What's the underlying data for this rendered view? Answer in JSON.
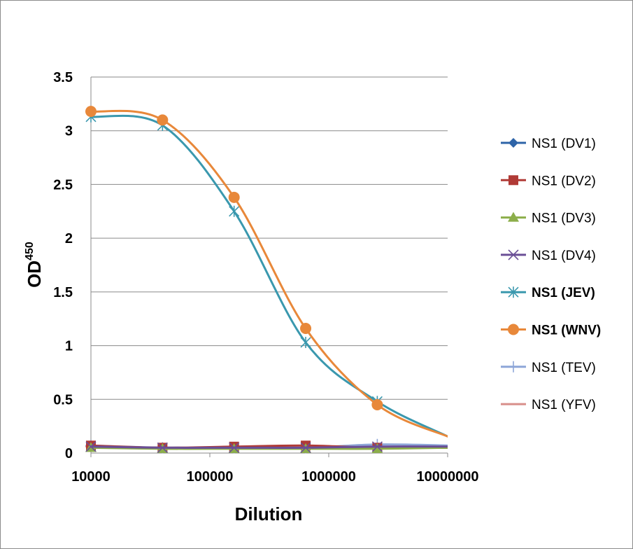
{
  "chart_data": {
    "type": "line",
    "xlabel": "Dilution",
    "ylabel": "OD",
    "ylabel_sup": "450",
    "x_scale": "log",
    "xlim": [
      10000,
      10000000
    ],
    "ylim": [
      0,
      3.5
    ],
    "x_ticks": [
      "10000",
      "100000",
      "1000000",
      "10000000"
    ],
    "y_ticks": [
      "0",
      "0.5",
      "1",
      "1.5",
      "2",
      "2.5",
      "3",
      "3.5"
    ],
    "grid": "horizontal",
    "legend_position": "right",
    "x": [
      10000,
      40000,
      160000,
      640000,
      2560000,
      10240000
    ],
    "series": [
      {
        "name": "NS1 (DV1)",
        "color": "#2e64a8",
        "marker": "diamond",
        "bold": false,
        "values": [
          0.06,
          0.05,
          0.05,
          0.05,
          0.05,
          0.05
        ]
      },
      {
        "name": "NS1 (DV2)",
        "color": "#b03a36",
        "marker": "square",
        "bold": false,
        "values": [
          0.07,
          0.05,
          0.06,
          0.07,
          0.05,
          0.05
        ]
      },
      {
        "name": "NS1 (DV3)",
        "color": "#8cae4a",
        "marker": "triangle",
        "bold": false,
        "values": [
          0.05,
          0.04,
          0.04,
          0.04,
          0.04,
          0.05
        ]
      },
      {
        "name": "NS1 (DV4)",
        "color": "#6a4e96",
        "marker": "x",
        "bold": false,
        "values": [
          0.06,
          0.05,
          0.05,
          0.05,
          0.06,
          0.06
        ]
      },
      {
        "name": "NS1 (JEV)",
        "color": "#3a98ae",
        "marker": "star",
        "bold": true,
        "values": [
          3.13,
          3.05,
          2.25,
          1.03,
          0.48,
          0.15
        ]
      },
      {
        "name": "NS1 (WNV)",
        "color": "#e8883a",
        "marker": "circle",
        "bold": true,
        "values": [
          3.18,
          3.1,
          2.38,
          1.16,
          0.45,
          0.15
        ]
      },
      {
        "name": "NS1 (TEV)",
        "color": "#8ea6d8",
        "marker": "plus",
        "bold": false,
        "values": [
          0.07,
          0.05,
          0.05,
          0.05,
          0.08,
          0.07
        ]
      },
      {
        "name": "NS1 (YFV)",
        "color": "#d88e8a",
        "marker": "dash",
        "bold": false,
        "values": [
          0.06,
          0.05,
          0.05,
          0.05,
          0.05,
          0.05
        ]
      }
    ]
  }
}
